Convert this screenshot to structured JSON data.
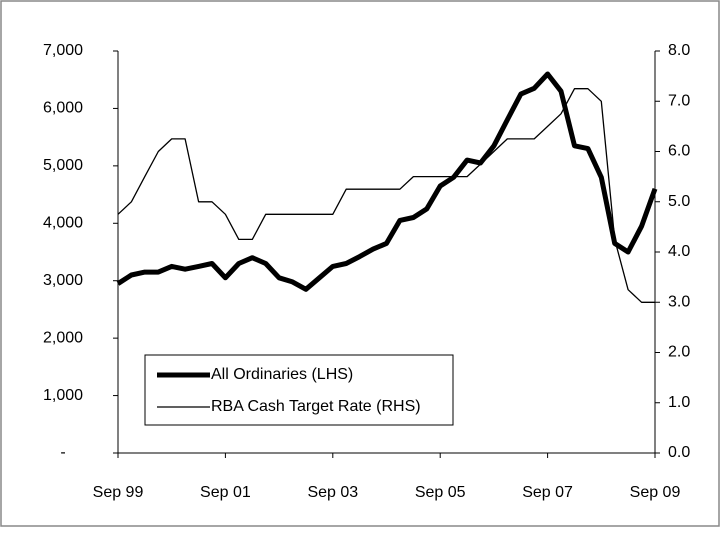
{
  "chart_data": {
    "type": "line",
    "categories": [
      "Sep 99",
      null,
      null,
      null,
      null,
      null,
      null,
      null,
      "Sep 01",
      null,
      null,
      null,
      null,
      null,
      null,
      null,
      "Sep 03",
      null,
      null,
      null,
      null,
      null,
      null,
      null,
      "Sep 05",
      null,
      null,
      null,
      null,
      null,
      null,
      null,
      "Sep 07",
      null,
      null,
      null,
      null,
      null,
      null,
      null,
      "Sep 09"
    ],
    "series": [
      {
        "name": "All Ordinaries (LHS)",
        "color": "#000000",
        "axis": "y",
        "values": [
          2950,
          3100,
          3150,
          3150,
          3250,
          3200,
          3250,
          3300,
          3050,
          3300,
          3400,
          3300,
          3050,
          2980,
          2850,
          3050,
          3250,
          3300,
          3420,
          3550,
          3650,
          4050,
          4100,
          4250,
          4650,
          4800,
          5100,
          5050,
          5350,
          5800,
          6250,
          6350,
          6600,
          6300,
          5350,
          5300,
          4800,
          3650,
          3500,
          3950,
          4600
        ]
      },
      {
        "name": "RBA Cash Target Rate (RHS)",
        "color": "#000000",
        "axis": "y2",
        "values": [
          4.75,
          5.0,
          5.5,
          6.0,
          6.25,
          6.25,
          5.0,
          5.0,
          4.75,
          4.25,
          4.25,
          4.75,
          4.75,
          4.75,
          4.75,
          4.75,
          4.75,
          5.25,
          5.25,
          5.25,
          5.25,
          5.25,
          5.5,
          5.5,
          5.5,
          5.5,
          5.5,
          5.75,
          6.0,
          6.25,
          6.25,
          6.25,
          6.5,
          6.75,
          7.25,
          7.25,
          7.0,
          4.25,
          3.25,
          3.0,
          3.0
        ]
      }
    ],
    "ylim": [
      0,
      7000
    ],
    "yticks": [
      {
        "value": 0,
        "label": "-"
      },
      {
        "value": 1000,
        "label": "1,000"
      },
      {
        "value": 2000,
        "label": "2,000"
      },
      {
        "value": 3000,
        "label": "3,000"
      },
      {
        "value": 4000,
        "label": "4,000"
      },
      {
        "value": 5000,
        "label": "5,000"
      },
      {
        "value": 6000,
        "label": "6,000"
      },
      {
        "value": 7000,
        "label": "7,000"
      }
    ],
    "y2lim": [
      0,
      8
    ],
    "y2ticks": [
      {
        "value": 0,
        "label": "0.0"
      },
      {
        "value": 1,
        "label": "1.0"
      },
      {
        "value": 2,
        "label": "2.0"
      },
      {
        "value": 3,
        "label": "3.0"
      },
      {
        "value": 4,
        "label": "4.0"
      },
      {
        "value": 5,
        "label": "5.0"
      },
      {
        "value": 6,
        "label": "6.0"
      },
      {
        "value": 7,
        "label": "7.0"
      },
      {
        "value": 8,
        "label": "8.0"
      }
    ],
    "grid": false,
    "legend": "bottom-left"
  }
}
